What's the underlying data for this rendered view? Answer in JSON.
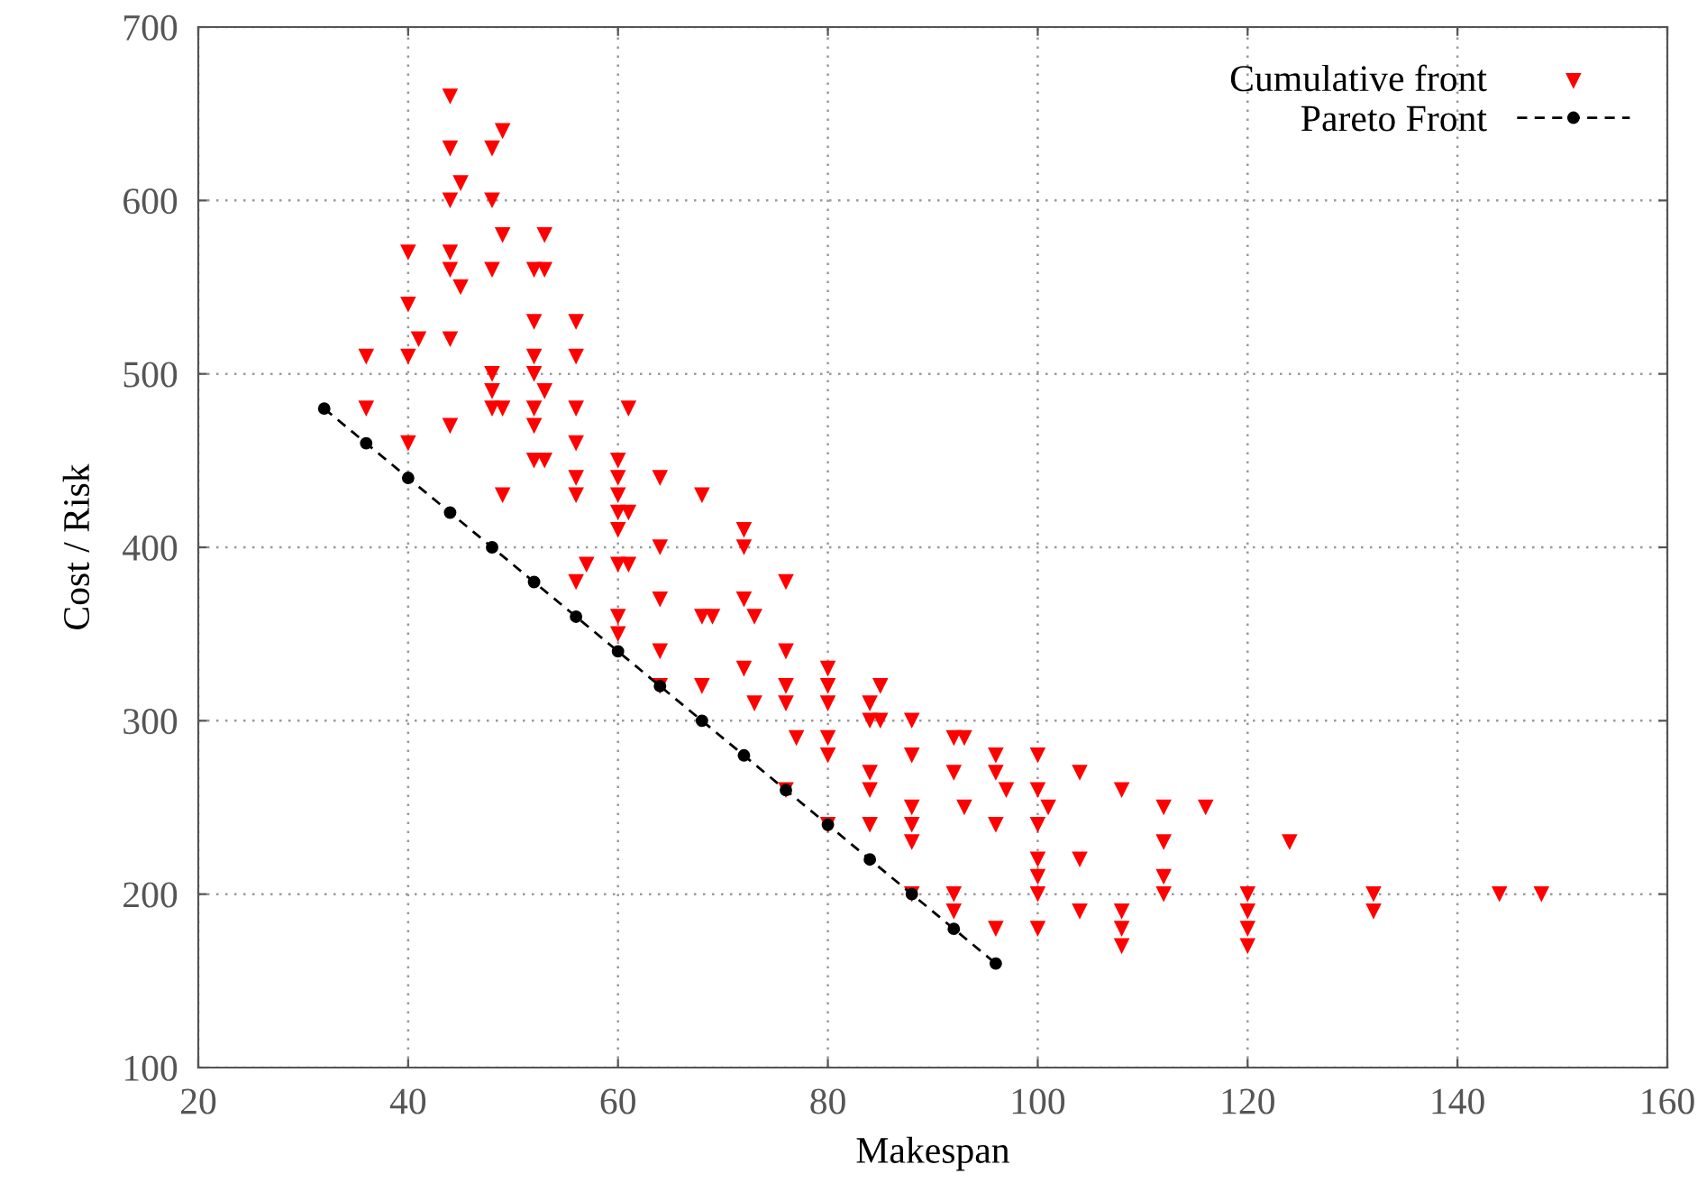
{
  "chart_data": {
    "type": "scatter",
    "xlabel": "Makespan",
    "ylabel": "Cost / Risk",
    "xlim": [
      20,
      160
    ],
    "xticks": [
      20,
      40,
      60,
      80,
      100,
      120,
      140,
      160
    ],
    "ylim": [
      100,
      700
    ],
    "yticks": [
      100,
      200,
      300,
      400,
      500,
      600,
      700
    ],
    "grid": true,
    "legend": "top right",
    "series": [
      {
        "name": "Cumulative front",
        "color": "#ff0000",
        "marker": "triangle",
        "x": [
          36,
          36,
          40,
          40,
          40,
          40,
          41,
          44,
          44,
          44,
          44,
          44,
          44,
          44,
          45,
          45,
          48,
          48,
          48,
          48,
          48,
          48,
          49,
          49,
          49,
          49,
          52,
          52,
          52,
          52,
          52,
          52,
          52,
          53,
          53,
          53,
          53,
          56,
          56,
          56,
          56,
          56,
          56,
          56,
          57,
          60,
          60,
          60,
          60,
          60,
          60,
          60,
          60,
          61,
          61,
          61,
          64,
          64,
          64,
          64,
          64,
          68,
          68,
          68,
          69,
          72,
          72,
          72,
          72,
          73,
          73,
          76,
          76,
          76,
          76,
          76,
          77,
          80,
          80,
          80,
          80,
          80,
          80,
          84,
          84,
          84,
          84,
          84,
          85,
          85,
          88,
          88,
          88,
          88,
          88,
          88,
          92,
          92,
          92,
          92,
          93,
          93,
          96,
          96,
          96,
          96,
          97,
          100,
          100,
          100,
          100,
          100,
          100,
          100,
          101,
          104,
          104,
          104,
          108,
          108,
          108,
          108,
          112,
          112,
          112,
          112,
          116,
          120,
          120,
          120,
          120,
          124,
          132,
          132,
          144,
          148
        ],
        "values": [
          510,
          480,
          570,
          540,
          510,
          460,
          520,
          660,
          630,
          600,
          570,
          560,
          520,
          470,
          610,
          550,
          630,
          600,
          560,
          500,
          490,
          480,
          640,
          580,
          480,
          430,
          560,
          530,
          510,
          500,
          480,
          470,
          450,
          580,
          560,
          490,
          450,
          530,
          510,
          480,
          460,
          440,
          430,
          380,
          390,
          450,
          440,
          430,
          420,
          410,
          390,
          360,
          350,
          480,
          420,
          390,
          440,
          400,
          370,
          340,
          320,
          430,
          360,
          320,
          360,
          410,
          400,
          370,
          330,
          360,
          310,
          380,
          340,
          320,
          310,
          260,
          290,
          330,
          320,
          310,
          290,
          280,
          240,
          310,
          300,
          270,
          260,
          240,
          320,
          300,
          300,
          280,
          250,
          240,
          230,
          200,
          290,
          270,
          200,
          190,
          290,
          250,
          280,
          270,
          240,
          180,
          260,
          280,
          260,
          240,
          220,
          210,
          200,
          180,
          250,
          270,
          220,
          190,
          260,
          190,
          180,
          170,
          250,
          230,
          210,
          200,
          250,
          200,
          190,
          180,
          170,
          230,
          200,
          190,
          200,
          200
        ]
      },
      {
        "name": "Pareto Front",
        "type": "line",
        "color": "#000000",
        "marker": "circle",
        "line_style": "dashed",
        "x": [
          32,
          36,
          40,
          44,
          48,
          52,
          56,
          60,
          64,
          68,
          72,
          76,
          80,
          84,
          88,
          92,
          96
        ],
        "values": [
          480,
          460,
          440,
          420,
          400,
          380,
          360,
          340,
          320,
          300,
          280,
          260,
          240,
          220,
          200,
          180,
          160
        ]
      }
    ]
  }
}
